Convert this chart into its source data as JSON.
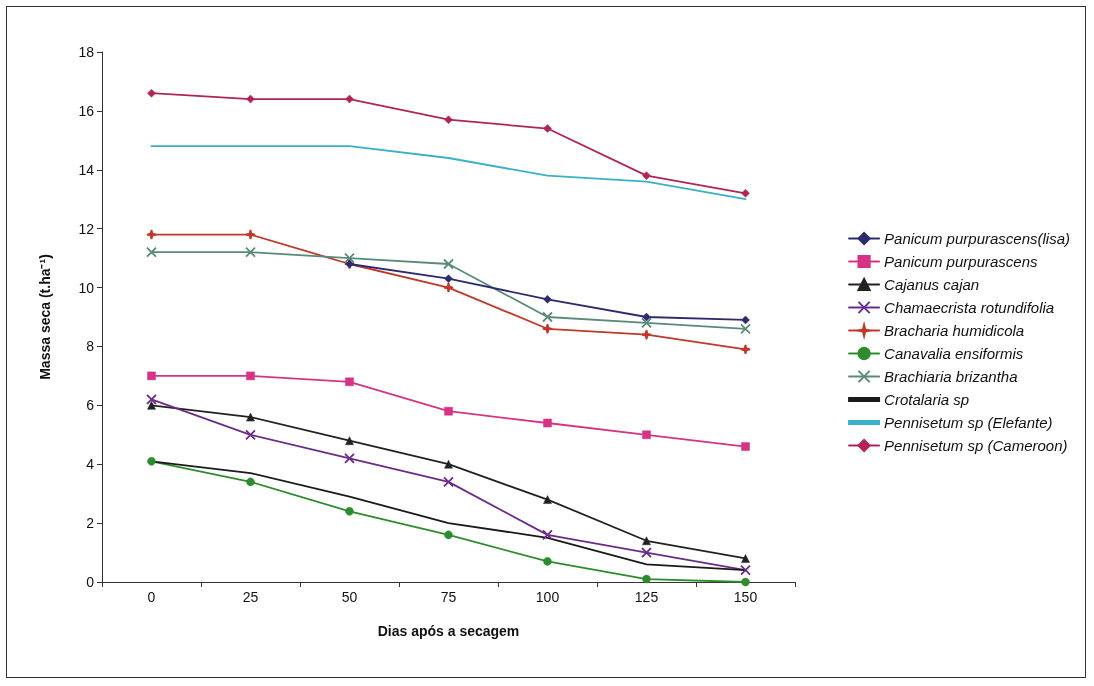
{
  "chart_data": {
    "type": "line",
    "xlabel": "Dias após a secagem",
    "ylabel": "Massa seca (t.ha⁻¹)",
    "categories": [
      "0",
      "25",
      "50",
      "75",
      "100",
      "125",
      "150"
    ],
    "ylim": [
      0,
      18
    ],
    "yticks": [
      0,
      2,
      4,
      6,
      8,
      10,
      12,
      14,
      16,
      18
    ],
    "grid": false,
    "legend": "right",
    "series": [
      {
        "name": "Panicum purpurascens(lisa)",
        "color": "#2e2a6e",
        "marker": "diamond",
        "values": [
          null,
          null,
          10.8,
          10.3,
          9.6,
          9.0,
          8.9
        ]
      },
      {
        "name": "Panicum purpurascens",
        "color": "#d63384",
        "marker": "square",
        "values": [
          7.0,
          7.0,
          6.8,
          5.8,
          5.4,
          5.0,
          4.6
        ]
      },
      {
        "name": "Cajanus cajan",
        "color": "#222222",
        "marker": "triangle",
        "values": [
          6.0,
          5.6,
          4.8,
          4.0,
          2.8,
          1.4,
          0.8
        ]
      },
      {
        "name": "Chamaecrista rotundifolia",
        "color": "#6a2c8a",
        "marker": "cross",
        "values": [
          6.2,
          5.0,
          4.2,
          3.4,
          1.6,
          1.0,
          0.4
        ]
      },
      {
        "name": "Bracharia humidicola",
        "color": "#c0392b",
        "marker": "star",
        "values": [
          11.8,
          11.8,
          10.8,
          10.0,
          8.6,
          8.4,
          7.9
        ]
      },
      {
        "name": "Canavalia ensiformis",
        "color": "#2e8b2e",
        "marker": "circle",
        "values": [
          4.1,
          3.4,
          2.4,
          1.6,
          0.7,
          0.1,
          0
        ]
      },
      {
        "name": "Brachiaria brizantha",
        "color": "#5a8a7a",
        "marker": "cross",
        "values": [
          11.2,
          11.2,
          11.0,
          10.8,
          9.0,
          8.8,
          8.6
        ]
      },
      {
        "name": "Crotalaria sp",
        "color": "#1a1a1a",
        "marker": "none",
        "values": [
          4.1,
          3.7,
          2.9,
          2.0,
          1.5,
          0.6,
          0.4
        ]
      },
      {
        "name": "Pennisetum sp (Elefante)",
        "color": "#3ab0c8",
        "marker": "none",
        "values": [
          14.8,
          14.8,
          14.8,
          14.4,
          13.8,
          13.6,
          13.0
        ]
      },
      {
        "name": "Pennisetum sp (Cameroon)",
        "color": "#b0245a",
        "marker": "diamond",
        "values": [
          16.6,
          16.4,
          16.4,
          15.7,
          15.4,
          13.8,
          13.2
        ]
      }
    ]
  }
}
